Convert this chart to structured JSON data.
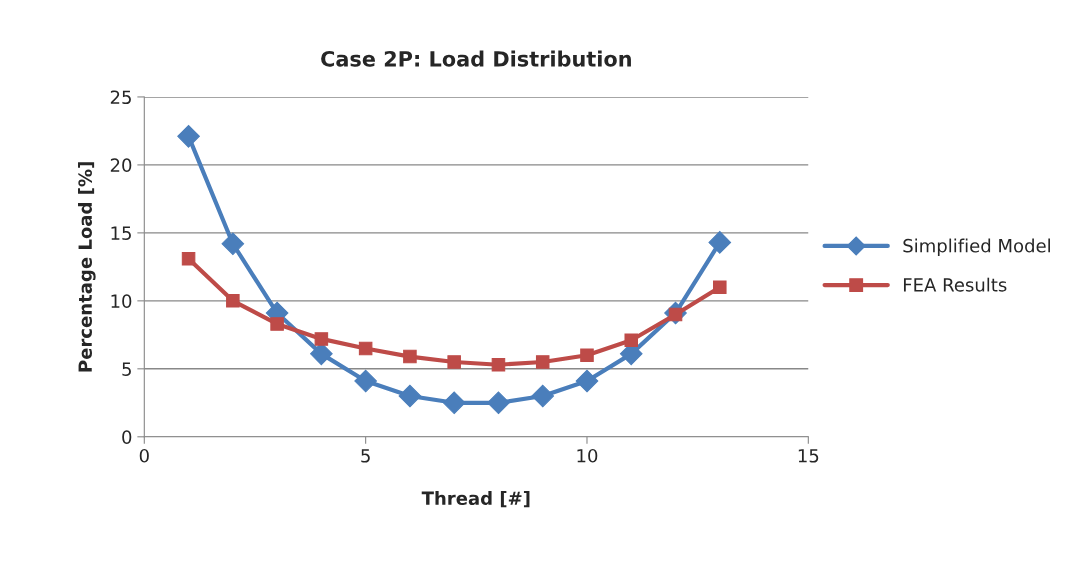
{
  "chart_data": {
    "type": "line",
    "title": "Case 2P: Load Distribution",
    "xlabel": "Thread [#]",
    "ylabel": "Percentage Load [%]",
    "x": [
      1,
      2,
      3,
      4,
      5,
      6,
      7,
      8,
      9,
      10,
      11,
      12,
      13
    ],
    "series": [
      {
        "name": "Simplified Model",
        "color": "#4a7ebb",
        "marker": "diamond",
        "values": [
          22.1,
          14.2,
          9.1,
          6.1,
          4.1,
          3.0,
          2.5,
          2.5,
          3.0,
          4.1,
          6.1,
          9.1,
          14.3
        ]
      },
      {
        "name": "FEA Results",
        "color": "#be4b48",
        "marker": "square",
        "values": [
          13.1,
          10.0,
          8.3,
          7.2,
          6.5,
          5.9,
          5.5,
          5.3,
          5.5,
          6.0,
          7.1,
          9.0,
          11.0
        ]
      }
    ],
    "xlim": [
      0,
      15
    ],
    "xticks": [
      0,
      5,
      10,
      15
    ],
    "ylim": [
      0,
      25
    ],
    "yticks": [
      0,
      5,
      10,
      15,
      20,
      25
    ],
    "grid": "y",
    "legend": "right",
    "line_style": "solid"
  }
}
